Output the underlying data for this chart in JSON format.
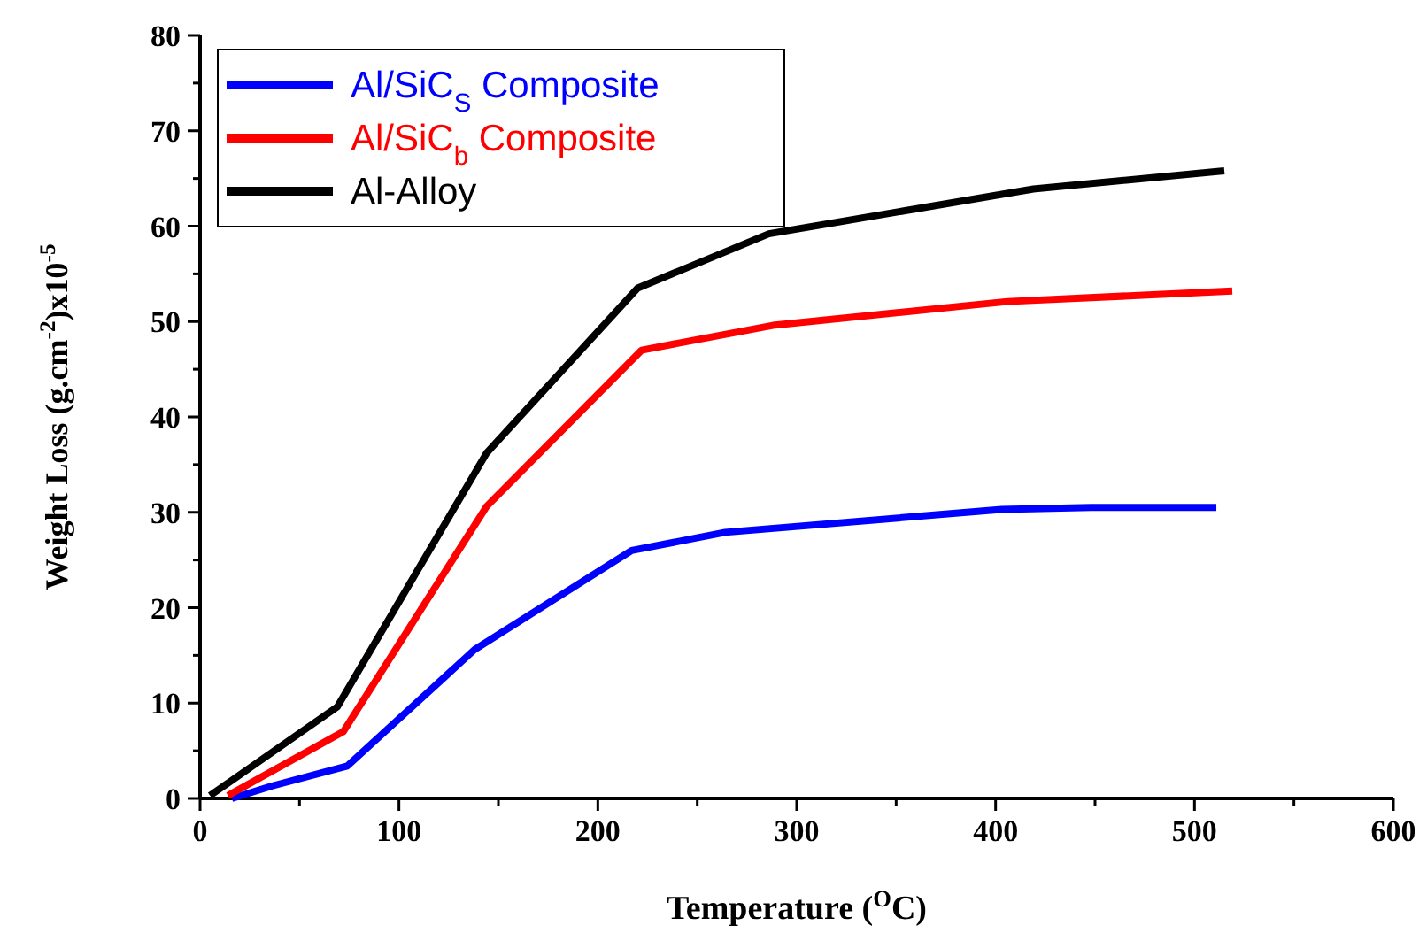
{
  "chart_data": {
    "type": "line",
    "xlabel": "Temperature ($^{O}$C)",
    "ylabel": "Weight Loss (g.cm$^{-2}$)x10$^{-5}$",
    "xlim": [
      0,
      600
    ],
    "ylim": [
      0,
      80
    ],
    "xticks": [
      0,
      {
        "value": 50,
        "label": null
      },
      100,
      {
        "value": 150,
        "label": null
      },
      200,
      {
        "value": 250,
        "label": null
      },
      300,
      {
        "value": 350,
        "label": null
      },
      400,
      {
        "value": 450,
        "label": null
      },
      500,
      {
        "value": 550,
        "label": null
      },
      600
    ],
    "yticks": [
      0,
      {
        "value": 5,
        "label": null
      },
      10,
      {
        "value": 15,
        "label": null
      },
      20,
      {
        "value": 25,
        "label": null
      },
      30,
      {
        "value": 35,
        "label": null
      },
      40,
      {
        "value": 45,
        "label": null
      },
      50,
      {
        "value": 55,
        "label": null
      },
      60,
      {
        "value": 65,
        "label": null
      },
      70,
      {
        "value": 75,
        "label": null
      },
      80
    ],
    "legend": "top left",
    "grid": false,
    "marker": "none",
    "line_style": "solid",
    "series": [
      {
        "name": "Al/SiC$_{S}$ Composite",
        "color": "#0000ff",
        "x": [
          16,
          36,
          74,
          138,
          217,
          264,
          403,
          448,
          511
        ],
        "values": [
          0,
          1.3,
          3.4,
          15.6,
          26,
          27.9,
          30.3,
          30.5,
          30.5
        ]
      },
      {
        "name": "Al/SiC$_{b}$ Composite",
        "color": "#ff0000",
        "x": [
          14,
          72,
          144,
          222,
          288,
          406,
          519
        ],
        "values": [
          0.3,
          7,
          30.6,
          47,
          49.6,
          52.1,
          53.2
        ]
      },
      {
        "name": "Al-Alloy",
        "color": "#000000",
        "x": [
          5,
          69,
          144,
          220,
          286,
          419,
          515
        ],
        "values": [
          0.3,
          9.6,
          36.2,
          53.5,
          59.2,
          63.9,
          65.8
        ]
      }
    ]
  }
}
